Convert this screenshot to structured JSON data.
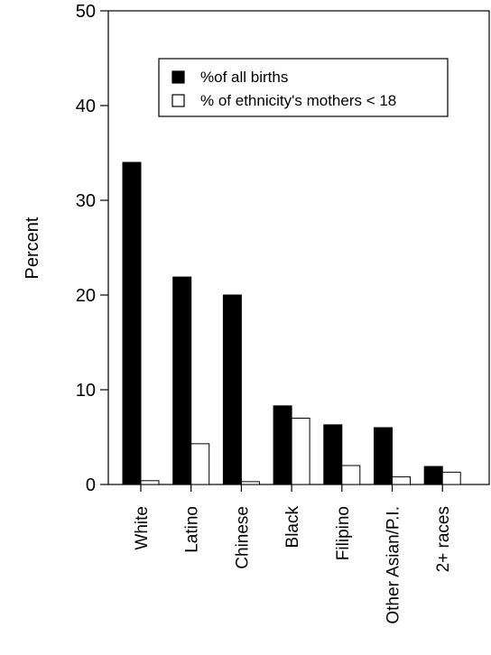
{
  "chart_data": {
    "type": "bar",
    "title": "",
    "xlabel": "",
    "ylabel": "Percent",
    "ylim": [
      0,
      50
    ],
    "yticks": [
      0,
      10,
      20,
      30,
      40,
      50
    ],
    "grid": false,
    "legend_position": "top-right",
    "categories": [
      "White",
      "Latino",
      "Chinese",
      "Black",
      "Filipino",
      "Other Asian/P.I.",
      "2+ races"
    ],
    "series": [
      {
        "name": "%of all births",
        "color": "#000000",
        "values": [
          34.0,
          21.9,
          20.0,
          8.3,
          6.3,
          6.0,
          1.9
        ]
      },
      {
        "name": "% of ethnicity's mothers < 18",
        "color": "#ffffff",
        "values": [
          0.4,
          4.3,
          0.3,
          7.0,
          2.0,
          0.8,
          1.3
        ]
      }
    ]
  }
}
